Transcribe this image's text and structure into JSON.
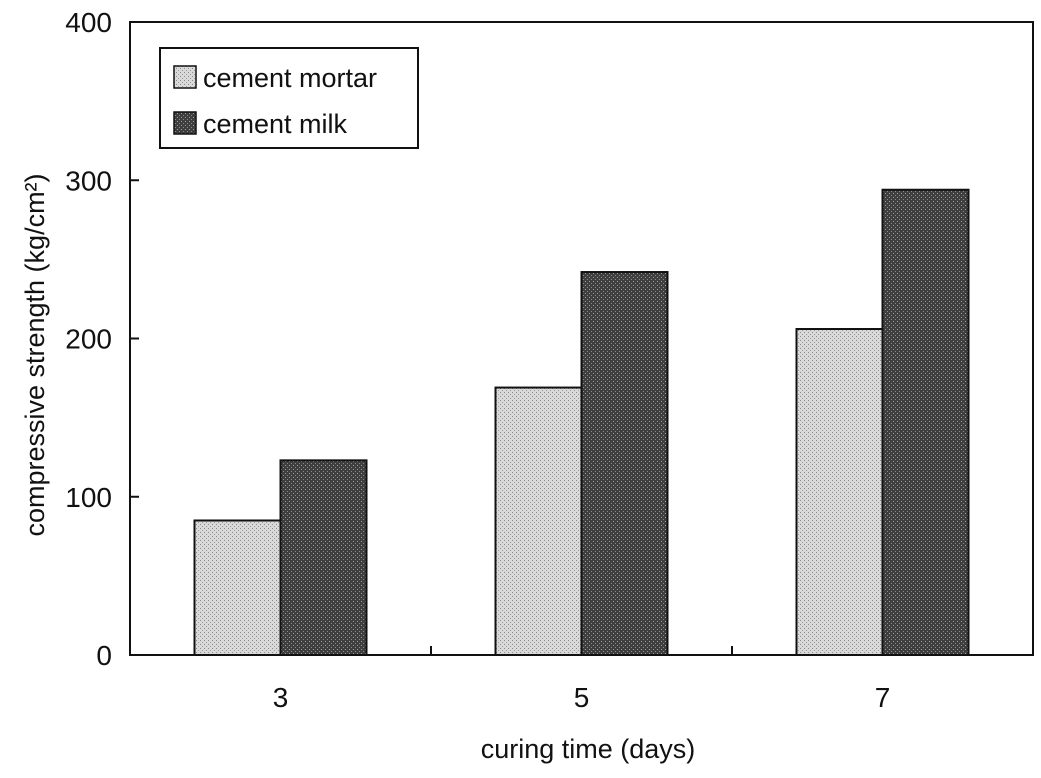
{
  "chart_data": {
    "type": "bar",
    "categories": [
      "3",
      "5",
      "7"
    ],
    "series": [
      {
        "name": "cement mortar",
        "values": [
          85,
          169,
          206
        ],
        "color": "#d2d2d2"
      },
      {
        "name": "cement milk",
        "values": [
          123,
          242,
          294
        ],
        "color": "#4a4a4a"
      }
    ],
    "xlabel": "curing time (days)",
    "ylabel": "compressive strength (kg/cm²)",
    "ylim": [
      0,
      400
    ],
    "yticks": [
      "0",
      "100",
      "200",
      "300",
      "400"
    ],
    "grid": false,
    "legend_position": "top-left"
  }
}
